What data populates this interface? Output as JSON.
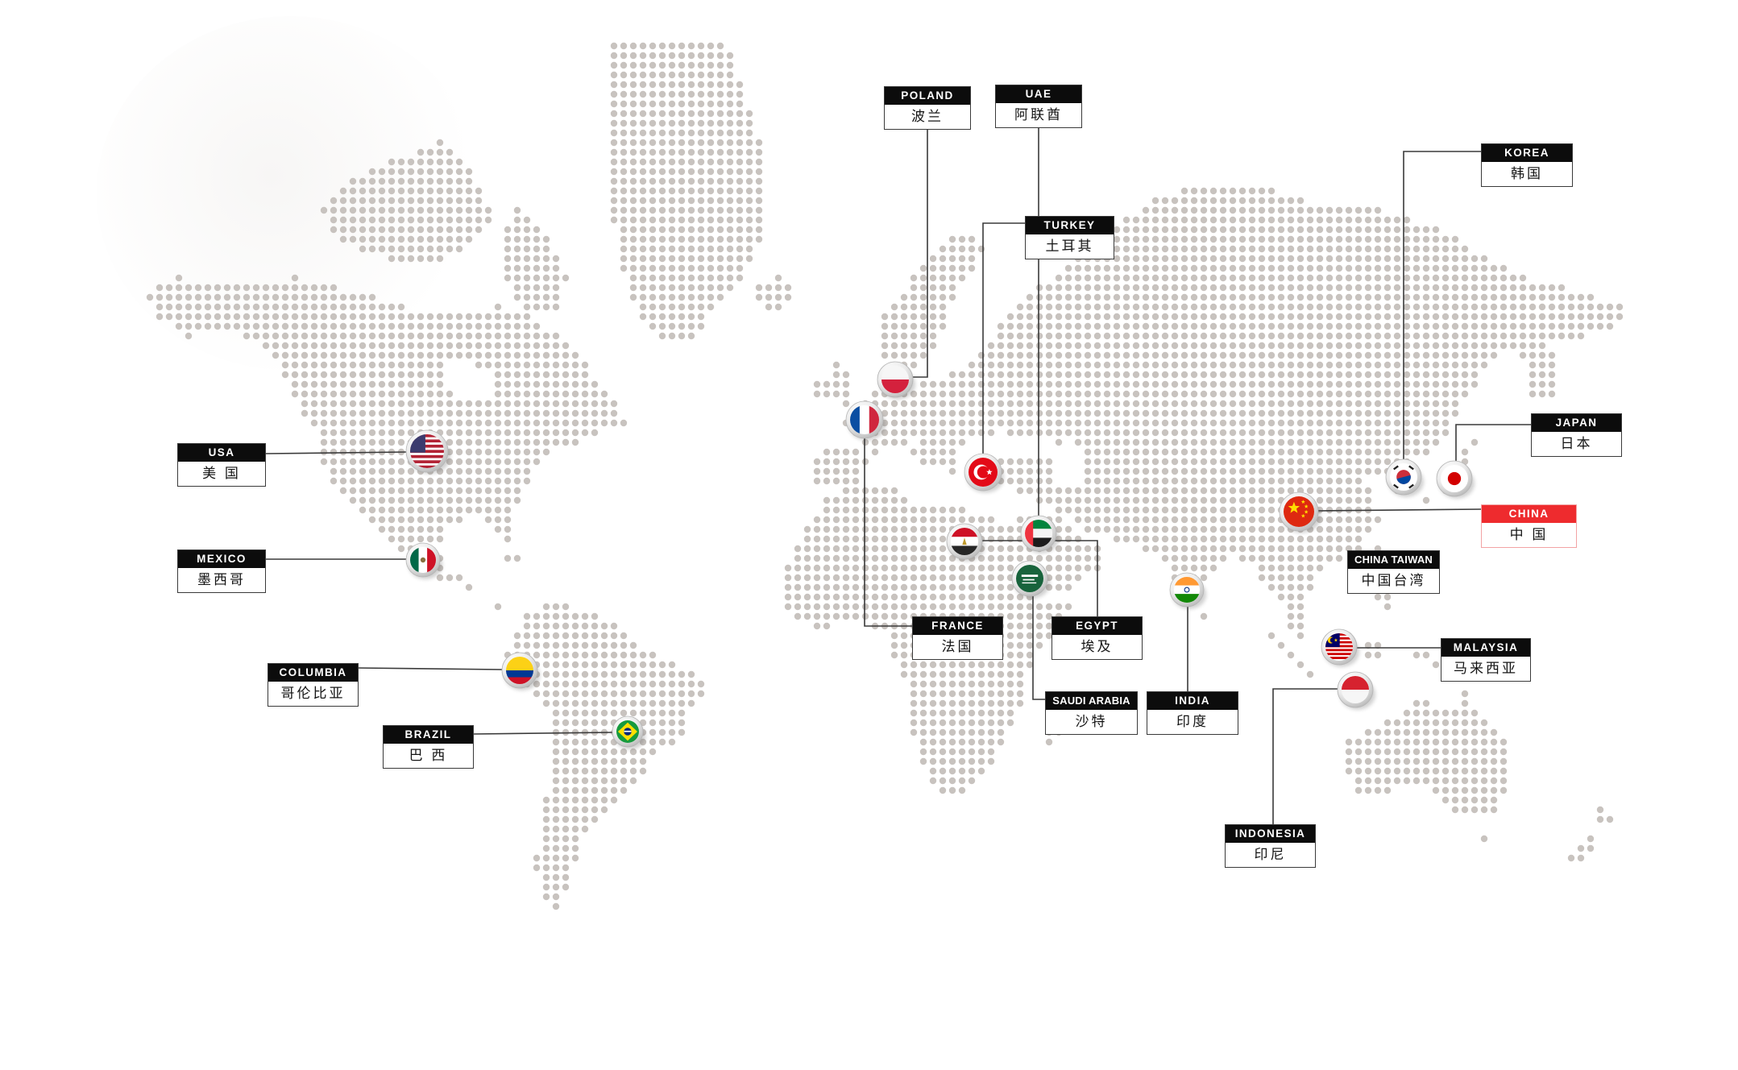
{
  "map": {
    "description": "dotted-world-map",
    "colors": {
      "background": "#ffffff",
      "dot": "#c8c3bf",
      "connector": "#3a3a3a",
      "label_header_bg": "#0c0c0c",
      "label_header_text": "#ffffff",
      "label_body_bg": "#ffffff",
      "highlight_red": "#ee2b2e",
      "highlight_border": "#f2a3a4"
    },
    "countries": [
      {
        "id": "poland",
        "en": "POLAND",
        "zh": "波兰",
        "flag_icon": "poland-flag-icon",
        "highlight": false
      },
      {
        "id": "uae",
        "en": "UAE",
        "zh": "阿联酋",
        "flag_icon": "uae-flag-icon",
        "highlight": false
      },
      {
        "id": "korea",
        "en": "KOREA",
        "zh": "韩国",
        "flag_icon": "korea-flag-icon",
        "highlight": false
      },
      {
        "id": "turkey",
        "en": "TURKEY",
        "zh": "土耳其",
        "flag_icon": "turkey-flag-icon",
        "highlight": false
      },
      {
        "id": "japan",
        "en": "JAPAN",
        "zh": "日本",
        "flag_icon": "japan-flag-icon",
        "highlight": false
      },
      {
        "id": "usa",
        "en": "USA",
        "zh": "美 国",
        "flag_icon": "usa-flag-icon",
        "highlight": false
      },
      {
        "id": "china",
        "en": "CHINA",
        "zh": "中 国",
        "flag_icon": "china-flag-icon",
        "highlight": true
      },
      {
        "id": "mexico",
        "en": "MEXICO",
        "zh": "墨西哥",
        "flag_icon": "mexico-flag-icon",
        "highlight": false
      },
      {
        "id": "china-taiwan",
        "en": "CHINA TAIWAN",
        "zh": "中国台湾",
        "flag_icon": "",
        "highlight": false
      },
      {
        "id": "france",
        "en": "FRANCE",
        "zh": "法国",
        "flag_icon": "france-flag-icon",
        "highlight": false
      },
      {
        "id": "egypt",
        "en": "EGYPT",
        "zh": "埃及",
        "flag_icon": "egypt-flag-icon",
        "highlight": false
      },
      {
        "id": "malaysia",
        "en": "MALAYSIA",
        "zh": "马来西亚",
        "flag_icon": "malaysia-flag-icon",
        "highlight": false
      },
      {
        "id": "columbia",
        "en": "COLUMBIA",
        "zh": "哥伦比亚",
        "flag_icon": "columbia-flag-icon",
        "highlight": false
      },
      {
        "id": "saudi-arabia",
        "en": "SAUDI ARABIA",
        "zh": "沙特",
        "flag_icon": "saudi-arabia-flag-icon",
        "highlight": false
      },
      {
        "id": "india",
        "en": "INDIA",
        "zh": "印度",
        "flag_icon": "india-flag-icon",
        "highlight": false
      },
      {
        "id": "brazil",
        "en": "BRAZIL",
        "zh": "巴 西",
        "flag_icon": "brazil-flag-icon",
        "highlight": false
      },
      {
        "id": "indonesia",
        "en": "INDONESIA",
        "zh": "印尼",
        "flag_icon": "indonesia-flag-icon",
        "highlight": false
      }
    ]
  }
}
